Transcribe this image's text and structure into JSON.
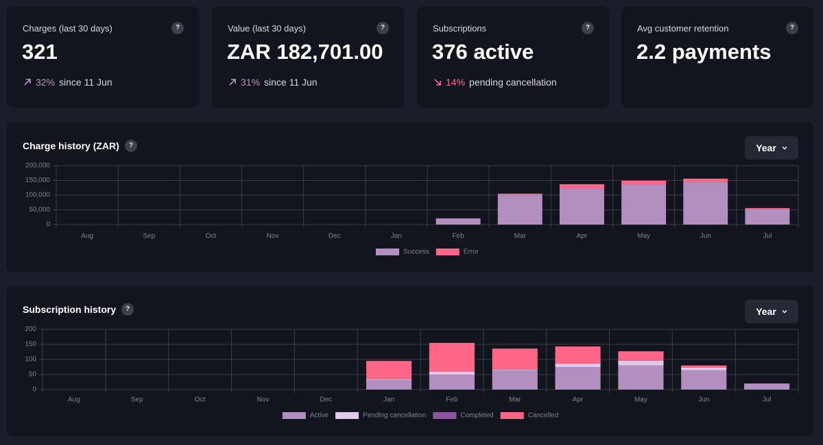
{
  "help": "?",
  "cards": [
    {
      "title": "Charges (last 30 days)",
      "value": "321",
      "change": "32%",
      "change_text": "since 11 Jun",
      "trend": "up"
    },
    {
      "title": "Value (last 30 days)",
      "value": "ZAR 182,701.00",
      "change": "31%",
      "change_text": "since 11 Jun",
      "trend": "up"
    },
    {
      "title": "Subscriptions",
      "value": "376 active",
      "change": "14%",
      "change_text": "pending cancellation",
      "trend": "down"
    },
    {
      "title": "Avg customer retention",
      "value": "2.2 payments"
    }
  ],
  "chart_data": [
    {
      "type": "stacked-bar",
      "title": "Charge history (ZAR)",
      "button": "Year",
      "categories": [
        "Aug",
        "Sep",
        "Oct",
        "Nov",
        "Dec",
        "Jan",
        "Feb",
        "Mar",
        "Apr",
        "May",
        "Jun",
        "Jul"
      ],
      "series": [
        {
          "name": "Success",
          "color": "#b38fbf",
          "values": [
            0,
            0,
            0,
            0,
            0,
            0,
            21000,
            102000,
            123000,
            137000,
            144000,
            53000
          ]
        },
        {
          "name": "Error",
          "color": "#ff6687",
          "values": [
            0,
            0,
            0,
            0,
            0,
            0,
            0,
            3000,
            14000,
            12000,
            12000,
            3000
          ]
        }
      ],
      "ylim": [
        0,
        200000
      ],
      "yticks": [
        0,
        {
          "value": 50000,
          "label": "50,000"
        },
        {
          "value": 100000,
          "label": "100,000"
        },
        {
          "value": 150000,
          "label": "150,000"
        },
        {
          "value": 200000,
          "label": "200,000"
        }
      ],
      "grid": true
    },
    {
      "type": "stacked-bar",
      "title": "Subscription history",
      "button": "Year",
      "categories": [
        "Aug",
        "Sep",
        "Oct",
        "Nov",
        "Dec",
        "Jan",
        "Feb",
        "Mar",
        "Apr",
        "May",
        "Jun",
        "Jul"
      ],
      "series": [
        {
          "name": "Active",
          "color": "#b38fbf",
          "values": [
            0,
            0,
            0,
            0,
            0,
            32,
            50,
            64,
            75,
            80,
            64,
            20
          ]
        },
        {
          "name": "Pending cancellation",
          "color": "#e2cbe8",
          "values": [
            0,
            0,
            0,
            0,
            0,
            2,
            9,
            2,
            11,
            16,
            9,
            0
          ]
        },
        {
          "name": "Completed",
          "color": "#8c56a0",
          "values": [
            0,
            0,
            0,
            0,
            0,
            0,
            0,
            0,
            0,
            0,
            0,
            0
          ]
        },
        {
          "name": "Cancelled",
          "color": "#ff6687",
          "values": [
            0,
            0,
            0,
            0,
            0,
            61,
            96,
            70,
            57,
            31,
            7,
            0
          ]
        }
      ],
      "ylim": [
        0,
        200
      ],
      "yticks": [
        0,
        50,
        100,
        150,
        200
      ],
      "grid": true
    }
  ]
}
